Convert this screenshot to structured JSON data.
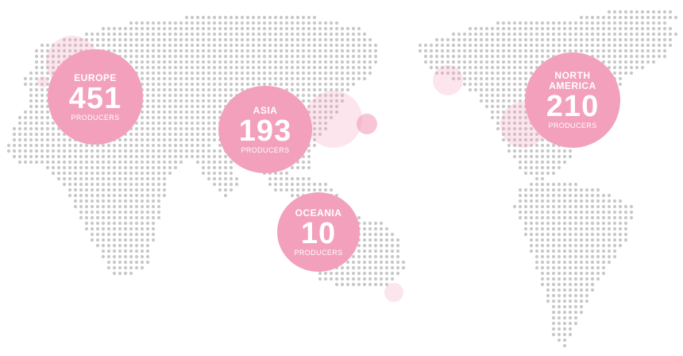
{
  "map": {
    "dot_color": "#c8c8c8",
    "bubble_color": "#f2a0bc",
    "halo_color": "#f7c6d6"
  },
  "regions": {
    "europe": {
      "name": "EUROPE",
      "count": "451",
      "unit": "PRODUCERS"
    },
    "asia": {
      "name": "ASIA",
      "count": "193",
      "unit": "PRODUCERS"
    },
    "oceania": {
      "name": "OCEANIA",
      "count": "10",
      "unit": "PRODUCERS"
    },
    "north_america": {
      "name": "NORTH AMERICA",
      "count": "210",
      "unit": "PRODUCERS"
    }
  }
}
